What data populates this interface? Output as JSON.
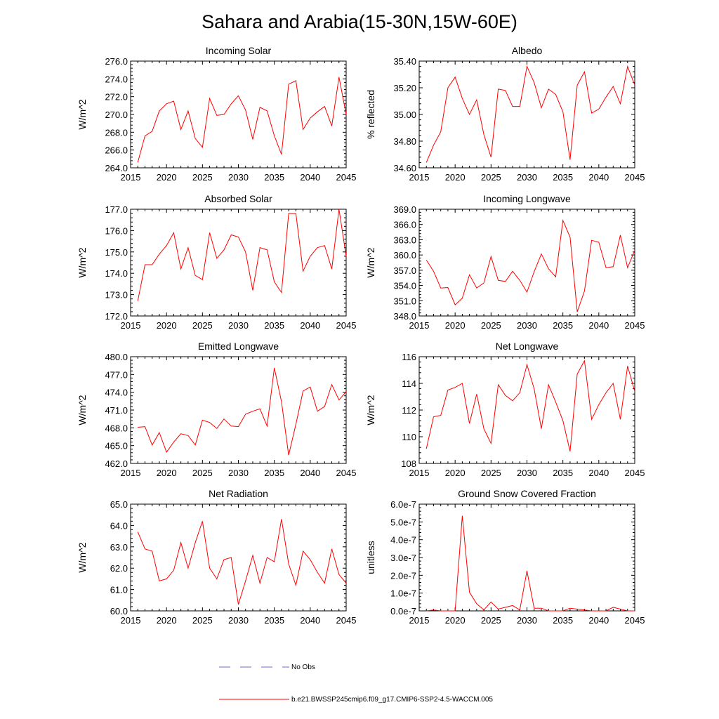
{
  "title": "Sahara and Arabia(15-30N,15W-60E)",
  "colors": {
    "model": "#ff0000",
    "obs": "#6b6bd8",
    "axis": "#000000"
  },
  "legend": {
    "obs_label": "No Obs",
    "model_label": "b.e21.BWSSP245cmip6.f09_g17.CMIP6-SSP2-4.5-WACCM.005"
  },
  "chart_data": [
    {
      "type": "line",
      "title": "Incoming Solar",
      "ylabel": "W/m^2",
      "xlim": [
        2015,
        2045
      ],
      "ylim": [
        264,
        276
      ],
      "xticks": [
        2015,
        2020,
        2025,
        2030,
        2035,
        2040,
        2045
      ],
      "xtick_labels": [
        "2015",
        "2020",
        "2025",
        "2030",
        "2035",
        "2040",
        "2045"
      ],
      "yticks": [
        264,
        266,
        268,
        270,
        272,
        274,
        276
      ],
      "ytick_labels": [
        "264.0",
        "266.0",
        "268.0",
        "270.0",
        "272.0",
        "274.0",
        "276.0"
      ],
      "x": [
        2016,
        2017,
        2018,
        2019,
        2020,
        2021,
        2022,
        2023,
        2024,
        2025,
        2026,
        2027,
        2028,
        2029,
        2030,
        2031,
        2032,
        2033,
        2034,
        2035,
        2036,
        2037,
        2038,
        2039,
        2040,
        2041,
        2042,
        2043,
        2044,
        2045
      ],
      "y": [
        264.6,
        267.6,
        268.1,
        270.4,
        271.2,
        271.5,
        268.3,
        270.4,
        267.3,
        266.3,
        271.8,
        269.9,
        270.0,
        271.2,
        272.1,
        270.5,
        267.2,
        270.8,
        270.4,
        267.6,
        265.5,
        273.4,
        273.8,
        268.3,
        269.6,
        270.3,
        270.9,
        268.7,
        274.2,
        270.0
      ]
    },
    {
      "type": "line",
      "title": "Albedo",
      "ylabel": "% reflected",
      "xlim": [
        2015,
        2045
      ],
      "ylim": [
        34.6,
        35.4
      ],
      "xticks": [
        2015,
        2020,
        2025,
        2030,
        2035,
        2040,
        2045
      ],
      "xtick_labels": [
        "2015",
        "2020",
        "2025",
        "2030",
        "2035",
        "2040",
        "2045"
      ],
      "yticks": [
        34.6,
        34.8,
        35.0,
        35.2,
        35.4
      ],
      "ytick_labels": [
        "34.60",
        "34.80",
        "35.00",
        "35.20",
        "35.40"
      ],
      "x": [
        2016,
        2017,
        2018,
        2019,
        2020,
        2021,
        2022,
        2023,
        2024,
        2025,
        2026,
        2027,
        2028,
        2029,
        2030,
        2031,
        2032,
        2033,
        2034,
        2035,
        2036,
        2037,
        2038,
        2039,
        2040,
        2041,
        2042,
        2043,
        2044,
        2045
      ],
      "y": [
        34.64,
        34.77,
        34.87,
        35.2,
        35.28,
        35.12,
        35.0,
        35.11,
        34.85,
        34.68,
        35.19,
        35.18,
        35.06,
        35.06,
        35.36,
        35.24,
        35.05,
        35.19,
        35.15,
        35.02,
        34.66,
        35.22,
        35.32,
        35.01,
        35.04,
        35.13,
        35.21,
        35.08,
        35.36,
        35.22
      ]
    },
    {
      "type": "line",
      "title": "Absorbed Solar",
      "ylabel": "W/m^2",
      "xlim": [
        2015,
        2045
      ],
      "ylim": [
        172,
        177
      ],
      "xticks": [
        2015,
        2020,
        2025,
        2030,
        2035,
        2040,
        2045
      ],
      "xtick_labels": [
        "2015",
        "2020",
        "2025",
        "2030",
        "2035",
        "2040",
        "2045"
      ],
      "yticks": [
        172,
        173,
        174,
        175,
        176,
        177
      ],
      "ytick_labels": [
        "172.0",
        "173.0",
        "174.0",
        "175.0",
        "176.0",
        "177.0"
      ],
      "x": [
        2016,
        2017,
        2018,
        2019,
        2020,
        2021,
        2022,
        2023,
        2024,
        2025,
        2026,
        2027,
        2028,
        2029,
        2030,
        2031,
        2032,
        2033,
        2034,
        2035,
        2036,
        2037,
        2038,
        2039,
        2040,
        2041,
        2042,
        2043,
        2044,
        2045
      ],
      "y": [
        172.7,
        174.4,
        174.4,
        174.9,
        175.3,
        175.9,
        174.2,
        175.2,
        173.9,
        173.7,
        175.9,
        174.7,
        175.1,
        175.8,
        175.7,
        175.0,
        173.2,
        175.2,
        175.1,
        173.6,
        173.1,
        176.8,
        176.8,
        174.1,
        174.8,
        175.2,
        175.3,
        174.2,
        177.0,
        174.8
      ]
    },
    {
      "type": "line",
      "title": "Incoming Longwave",
      "ylabel": "W/m^2",
      "xlim": [
        2015,
        2045
      ],
      "ylim": [
        348,
        369
      ],
      "xticks": [
        2015,
        2020,
        2025,
        2030,
        2035,
        2040,
        2045
      ],
      "xtick_labels": [
        "2015",
        "2020",
        "2025",
        "2030",
        "2035",
        "2040",
        "2045"
      ],
      "yticks": [
        348,
        351,
        354,
        357,
        360,
        363,
        366,
        369
      ],
      "ytick_labels": [
        "348.0",
        "351.0",
        "354.0",
        "357.0",
        "360.0",
        "363.0",
        "366.0",
        "369.0"
      ],
      "x": [
        2016,
        2017,
        2018,
        2019,
        2020,
        2021,
        2022,
        2023,
        2024,
        2025,
        2026,
        2027,
        2028,
        2029,
        2030,
        2031,
        2032,
        2033,
        2034,
        2035,
        2036,
        2037,
        2038,
        2039,
        2040,
        2041,
        2042,
        2043,
        2044,
        2045
      ],
      "y": [
        359.0,
        356.8,
        353.5,
        353.6,
        350.2,
        351.5,
        356.1,
        353.5,
        354.5,
        359.7,
        355.0,
        354.8,
        356.8,
        355.0,
        352.7,
        356.7,
        360.2,
        357.3,
        355.7,
        366.8,
        363.5,
        348.8,
        352.9,
        362.9,
        362.5,
        357.5,
        357.7,
        363.9,
        357.5,
        360.9
      ]
    },
    {
      "type": "line",
      "title": "Emitted Longwave",
      "ylabel": "W/m^2",
      "xlim": [
        2015,
        2045
      ],
      "ylim": [
        462,
        480
      ],
      "xticks": [
        2015,
        2020,
        2025,
        2030,
        2035,
        2040,
        2045
      ],
      "xtick_labels": [
        "2015",
        "2020",
        "2025",
        "2030",
        "2035",
        "2040",
        "2045"
      ],
      "yticks": [
        462,
        465,
        468,
        471,
        474,
        477,
        480
      ],
      "ytick_labels": [
        "462.0",
        "465.0",
        "468.0",
        "471.0",
        "474.0",
        "477.0",
        "480.0"
      ],
      "x": [
        2016,
        2017,
        2018,
        2019,
        2020,
        2021,
        2022,
        2023,
        2024,
        2025,
        2026,
        2027,
        2028,
        2029,
        2030,
        2031,
        2032,
        2033,
        2034,
        2035,
        2036,
        2037,
        2038,
        2039,
        2040,
        2041,
        2042,
        2043,
        2044,
        2045
      ],
      "y": [
        468.1,
        468.2,
        465.1,
        467.2,
        463.9,
        465.6,
        467.0,
        466.7,
        465.1,
        469.3,
        468.9,
        467.9,
        469.5,
        468.3,
        468.2,
        470.3,
        470.8,
        471.2,
        468.3,
        478.1,
        472.4,
        463.4,
        468.6,
        474.2,
        474.9,
        470.8,
        471.6,
        475.3,
        472.7,
        474.1
      ]
    },
    {
      "type": "line",
      "title": "Net Longwave",
      "ylabel": "W/m^2",
      "xlim": [
        2015,
        2045
      ],
      "ylim": [
        108,
        116
      ],
      "xticks": [
        2015,
        2020,
        2025,
        2030,
        2035,
        2040,
        2045
      ],
      "xtick_labels": [
        "2015",
        "2020",
        "2025",
        "2030",
        "2035",
        "2040",
        "2045"
      ],
      "yticks": [
        108,
        110,
        112,
        114,
        116
      ],
      "ytick_labels": [
        "108",
        "110",
        "112",
        "114",
        "116"
      ],
      "x": [
        2016,
        2017,
        2018,
        2019,
        2020,
        2021,
        2022,
        2023,
        2024,
        2025,
        2026,
        2027,
        2028,
        2029,
        2030,
        2031,
        2032,
        2033,
        2034,
        2035,
        2036,
        2037,
        2038,
        2039,
        2040,
        2041,
        2042,
        2043,
        2044,
        2045
      ],
      "y": [
        109.1,
        111.5,
        111.6,
        113.5,
        113.7,
        114.0,
        111.0,
        113.2,
        110.6,
        109.5,
        113.9,
        113.1,
        112.7,
        113.3,
        115.4,
        113.6,
        110.6,
        113.9,
        112.6,
        111.2,
        108.9,
        114.7,
        115.7,
        111.3,
        112.4,
        113.3,
        114.0,
        111.3,
        115.3,
        113.4
      ]
    },
    {
      "type": "line",
      "title": "Net Radiation",
      "ylabel": "W/m^2",
      "xlim": [
        2015,
        2045
      ],
      "ylim": [
        60,
        65
      ],
      "xticks": [
        2015,
        2020,
        2025,
        2030,
        2035,
        2040,
        2045
      ],
      "xtick_labels": [
        "2015",
        "2020",
        "2025",
        "2030",
        "2035",
        "2040",
        "2045"
      ],
      "yticks": [
        60,
        61,
        62,
        63,
        64,
        65
      ],
      "ytick_labels": [
        "60.0",
        "61.0",
        "62.0",
        "63.0",
        "64.0",
        "65.0"
      ],
      "x": [
        2016,
        2017,
        2018,
        2019,
        2020,
        2021,
        2022,
        2023,
        2024,
        2025,
        2026,
        2027,
        2028,
        2029,
        2030,
        2031,
        2032,
        2033,
        2034,
        2035,
        2036,
        2037,
        2038,
        2039,
        2040,
        2041,
        2042,
        2043,
        2044,
        2045
      ],
      "y": [
        63.7,
        62.9,
        62.8,
        61.4,
        61.5,
        61.9,
        63.2,
        62.0,
        63.2,
        64.2,
        62.0,
        61.5,
        62.4,
        62.5,
        60.3,
        61.4,
        62.6,
        61.3,
        62.5,
        62.3,
        64.3,
        62.2,
        61.2,
        62.8,
        62.4,
        61.8,
        61.3,
        62.9,
        61.7,
        61.3
      ]
    },
    {
      "type": "line",
      "title": "Ground Snow Covered Fraction",
      "ylabel": "unitless",
      "xlim": [
        2015,
        2045
      ],
      "ylim": [
        0,
        6e-07
      ],
      "xticks": [
        2015,
        2020,
        2025,
        2030,
        2035,
        2040,
        2045
      ],
      "xtick_labels": [
        "2015",
        "2020",
        "2025",
        "2030",
        "2035",
        "2040",
        "2045"
      ],
      "yticks": [
        0,
        1e-07,
        2e-07,
        3e-07,
        4e-07,
        5e-07,
        6e-07
      ],
      "ytick_labels": [
        "0.0e-7",
        "1.0e-7",
        "2.0e-7",
        "3.0e-7",
        "4.0e-7",
        "5.0e-7",
        "6.0e-7"
      ],
      "x": [
        2016,
        2017,
        2018,
        2019,
        2020,
        2021,
        2022,
        2023,
        2024,
        2025,
        2026,
        2027,
        2028,
        2029,
        2030,
        2031,
        2032,
        2033,
        2034,
        2035,
        2036,
        2037,
        2038,
        2039,
        2040,
        2041,
        2042,
        2043,
        2044,
        2045
      ],
      "y": [
        0,
        5e-09,
        0,
        0,
        0,
        5.35e-07,
        1.05e-07,
        4e-08,
        5e-09,
        5e-08,
        1e-08,
        2e-08,
        3e-08,
        5e-09,
        2.25e-07,
        1.5e-08,
        1.5e-08,
        0,
        0,
        0,
        1.5e-08,
        1e-08,
        5e-09,
        0,
        0,
        0,
        2e-08,
        1e-08,
        0,
        0
      ]
    }
  ]
}
